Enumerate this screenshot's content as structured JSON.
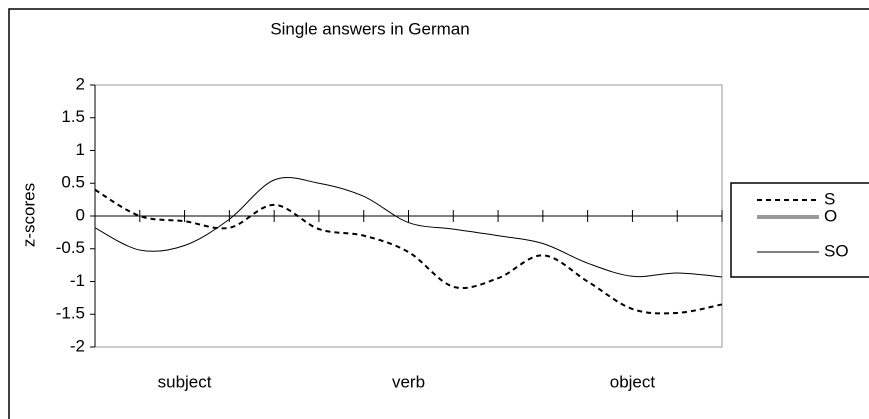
{
  "chart_data": {
    "type": "line",
    "title": "Single answers in German",
    "ylabel": "z-scores",
    "categories": [
      null,
      null,
      "subject",
      null,
      null,
      null,
      null,
      "verb",
      null,
      null,
      null,
      null,
      "object",
      null,
      null
    ],
    "series": [
      {
        "name": "S",
        "color": "#000000",
        "dash": true,
        "values": [
          0.4,
          0.0,
          -0.08,
          -0.18,
          0.17,
          -0.2,
          -0.3,
          -0.55,
          -1.08,
          -0.95,
          -0.6,
          -1.0,
          -1.42,
          -1.48,
          -1.35
        ]
      },
      {
        "name": "O",
        "color": "#999999",
        "values": [
          null,
          null,
          null,
          null,
          null,
          null,
          null,
          null,
          null,
          null,
          null,
          null,
          null,
          null,
          null
        ]
      },
      {
        "name": "SO",
        "color": "#000000",
        "values": [
          -0.18,
          -0.52,
          -0.45,
          -0.05,
          0.55,
          0.5,
          0.3,
          -0.1,
          -0.2,
          -0.3,
          -0.42,
          -0.72,
          -0.92,
          -0.87,
          -0.93
        ]
      }
    ],
    "ylim": [
      -2,
      2
    ],
    "yticks": [
      2,
      1.5,
      1,
      0.5,
      0,
      -0.5,
      -1,
      -1.5,
      -2
    ],
    "legend": "right"
  }
}
